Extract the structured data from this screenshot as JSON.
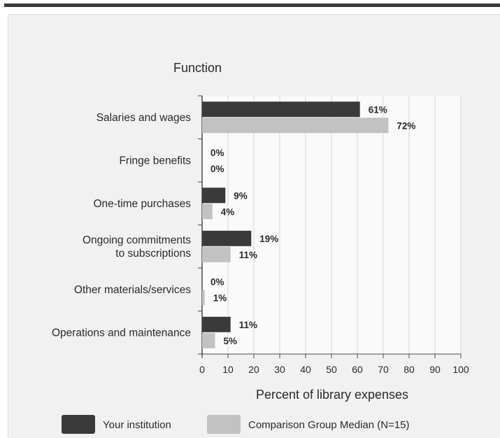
{
  "chart_data": {
    "type": "bar",
    "orientation": "horizontal",
    "category_axis_title": "Function",
    "xlabel": "Percent of library expenses",
    "xlim": [
      0,
      100
    ],
    "xticks": [
      0,
      10,
      20,
      30,
      40,
      50,
      60,
      70,
      80,
      90,
      100
    ],
    "grid": true,
    "categories": [
      [
        "Salaries and wages"
      ],
      [
        "Fringe benefits"
      ],
      [
        "One-time purchases"
      ],
      [
        "Ongoing commitments",
        "to subscriptions"
      ],
      [
        "Other materials/services"
      ],
      [
        "Operations and maintenance"
      ]
    ],
    "series": [
      {
        "name": "Your institution",
        "color": "#3a3a3a",
        "values": [
          61,
          0,
          9,
          19,
          0,
          11
        ],
        "labels": [
          "61%",
          "0%",
          "9%",
          "19%",
          "0%",
          "11%"
        ]
      },
      {
        "name": "Comparison Group Median (N=15)",
        "color": "#c2c2c2",
        "values": [
          72,
          0,
          4,
          11,
          1,
          5
        ],
        "labels": [
          "72%",
          "0%",
          "4%",
          "11%",
          "1%",
          "5%"
        ]
      }
    ],
    "legend_position": "bottom"
  }
}
